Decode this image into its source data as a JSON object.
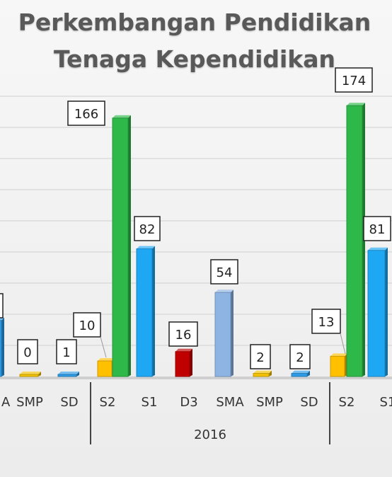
{
  "chart_data": {
    "type": "bar",
    "title_line1": "Perkembangan Pendidikan",
    "title_line2": "Tenaga Kependidikan",
    "ylim": [
      0,
      180
    ],
    "grid": true,
    "bars": [
      {
        "cat": "",
        "value": 36,
        "color": "#2e9be6",
        "label": "",
        "partial": true
      },
      {
        "cat": "A",
        "value": null,
        "color": "",
        "label": "",
        "catOnly": true
      },
      {
        "cat": "SMP",
        "value": 0,
        "color": "#f2c200",
        "label": "0"
      },
      {
        "cat": "SD",
        "value": 1,
        "color": "#2e9be6",
        "label": "1"
      },
      {
        "cat": "S2",
        "value": 10,
        "color": "#ffc000",
        "label": "10",
        "group": "S2a"
      },
      {
        "cat": "",
        "value": 166,
        "color": "#2eb84a",
        "label": "166",
        "group": "S2a"
      },
      {
        "cat": "S1",
        "value": 82,
        "color": "#1ea7f2",
        "label": "82"
      },
      {
        "cat": "D3",
        "value": 16,
        "color": "#c00000",
        "label": "16"
      },
      {
        "cat": "SMA",
        "value": 54,
        "color": "#8eb4e3",
        "label": "54"
      },
      {
        "cat": "SMP",
        "value": 2,
        "color": "#f2c200",
        "label": "2"
      },
      {
        "cat": "SD",
        "value": 2,
        "color": "#2e9be6",
        "label": "2"
      },
      {
        "cat": "S2",
        "value": 13,
        "color": "#ffc000",
        "label": "13",
        "group": "S2b"
      },
      {
        "cat": "",
        "value": 174,
        "color": "#2eb84a",
        "label": "174",
        "group": "S2b"
      },
      {
        "cat": "S1",
        "value": 81,
        "color": "#1ea7f2",
        "label": "81"
      }
    ],
    "year_labels": [
      "2016"
    ]
  }
}
